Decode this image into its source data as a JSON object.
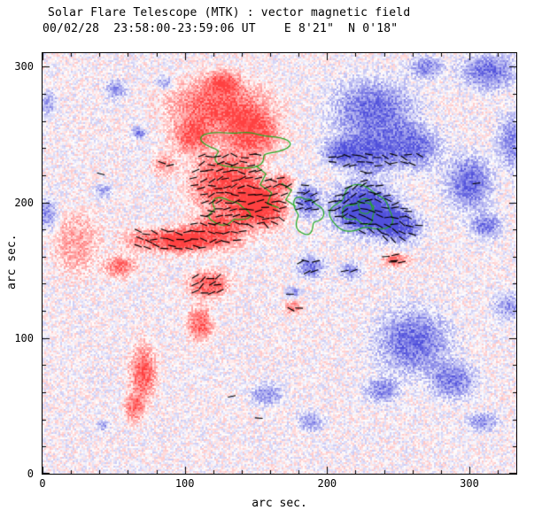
{
  "chart_data": {
    "type": "heatmap",
    "title": "Solar Flare Telescope (MTK) : vector magnetic field",
    "subtitle": "00/02/28  23:58:00-23:59:06 UT    E 8'21\"  N 0'18\"",
    "xlabel": "arc sec.",
    "ylabel": "arc sec.",
    "xlim": [
      0,
      333
    ],
    "ylim": [
      0,
      310
    ],
    "xticks": [
      0,
      100,
      200,
      300
    ],
    "yticks": [
      0,
      100,
      200,
      300
    ],
    "minor_tick_interval": 20,
    "colors": {
      "positive_strong": "#ff4141",
      "negative_strong": "#5050dc",
      "contour": "#22aa22",
      "vector": "#000000",
      "axis": "#000000"
    },
    "noise_amplitude": 0.3,
    "positive_blobs": [
      [
        123,
        271,
        34,
        20,
        0.85
      ],
      [
        148,
        251,
        19,
        16,
        0.8
      ],
      [
        104,
        248,
        14,
        12,
        0.7
      ],
      [
        126,
        290,
        12,
        8,
        0.6
      ],
      [
        129,
        215,
        25,
        23,
        0.95
      ],
      [
        154,
        197,
        17,
        15,
        1.1
      ],
      [
        123,
        179,
        19,
        13,
        0.9
      ],
      [
        169,
        215,
        8,
        7,
        0.6
      ],
      [
        85,
        228,
        9,
        8,
        0.5
      ],
      [
        79,
        173,
        22,
        9,
        0.75
      ],
      [
        100,
        172,
        14,
        9,
        0.8
      ],
      [
        54,
        153,
        11,
        8,
        0.7
      ],
      [
        116,
        140,
        14,
        10,
        0.85
      ],
      [
        110,
        111,
        9,
        13,
        0.8
      ],
      [
        70,
        75,
        9,
        20,
        0.85
      ],
      [
        64,
        49,
        7,
        10,
        0.7
      ],
      [
        23,
        170,
        16,
        23,
        0.45
      ],
      [
        248,
        158,
        9,
        5,
        0.75
      ],
      [
        176,
        123,
        6,
        5,
        0.65
      ]
    ],
    "negative_blobs": [
      [
        232,
        267,
        28,
        23,
        0.8
      ],
      [
        260,
        241,
        19,
        16,
        0.75
      ],
      [
        207,
        238,
        12,
        10,
        0.7
      ],
      [
        269,
        300,
        12,
        8,
        0.65
      ],
      [
        313,
        297,
        19,
        13,
        0.75
      ],
      [
        225,
        196,
        22,
        18,
        1.25
      ],
      [
        228,
        235,
        18,
        14,
        0.75
      ],
      [
        250,
        183,
        16,
        12,
        0.9
      ],
      [
        185,
        202,
        9,
        12,
        0.85
      ],
      [
        299,
        215,
        16,
        20,
        0.8
      ],
      [
        311,
        183,
        11,
        9,
        0.7
      ],
      [
        331,
        245,
        12,
        20,
        0.65
      ],
      [
        51,
        284,
        7,
        7,
        0.6
      ],
      [
        85,
        289,
        6,
        5,
        0.55
      ],
      [
        67,
        252,
        5,
        4,
        0.75
      ],
      [
        2,
        192,
        8,
        12,
        0.6
      ],
      [
        4,
        274,
        6,
        9,
        0.5
      ],
      [
        42,
        209,
        6,
        5,
        0.5
      ],
      [
        188,
        153,
        9,
        8,
        0.75
      ],
      [
        176,
        134,
        5,
        4,
        0.6
      ],
      [
        216,
        150,
        7,
        6,
        0.65
      ],
      [
        260,
        98,
        25,
        23,
        0.8
      ],
      [
        288,
        69,
        16,
        13,
        0.7
      ],
      [
        238,
        62,
        12,
        9,
        0.65
      ],
      [
        157,
        59,
        11,
        8,
        0.6
      ],
      [
        188,
        39,
        9,
        7,
        0.55
      ],
      [
        309,
        39,
        11,
        7,
        0.6
      ],
      [
        328,
        124,
        12,
        10,
        0.55
      ],
      [
        42,
        36,
        4,
        4,
        0.5
      ]
    ],
    "green_contour_loops": [
      [
        141,
        240,
        26,
        13,
        0.22,
        0.5
      ],
      [
        130,
        193,
        13,
        9,
        0.2,
        2.0
      ],
      [
        186,
        191,
        9,
        13,
        0.22,
        1.0
      ],
      [
        224,
        194,
        21,
        16,
        0.15,
        3.0
      ],
      [
        223,
        193,
        11,
        8,
        0.2,
        4.5
      ],
      [
        227,
        196,
        5,
        4,
        0.12,
        0.8
      ]
    ],
    "green_contour_paths": [
      [
        [
          150,
          227
        ],
        [
          157,
          221
        ],
        [
          153,
          213
        ],
        [
          161,
          207
        ],
        [
          158,
          199
        ],
        [
          166,
          196
        ]
      ],
      [
        [
          168,
          214
        ],
        [
          175,
          209
        ],
        [
          171,
          202
        ],
        [
          178,
          197
        ]
      ]
    ],
    "vector_field": {
      "x_range": [
        68,
        268
      ],
      "y_range": [
        122,
        238
      ],
      "spacing": 5.6,
      "threshold": 0.38,
      "length": 5.5,
      "seed": 7
    },
    "extra_vectors": [
      [
        41,
        221,
        -15
      ],
      [
        305,
        214,
        8
      ],
      [
        152,
        41,
        -5
      ],
      [
        133,
        57,
        12
      ],
      [
        247,
        157,
        5
      ]
    ]
  }
}
